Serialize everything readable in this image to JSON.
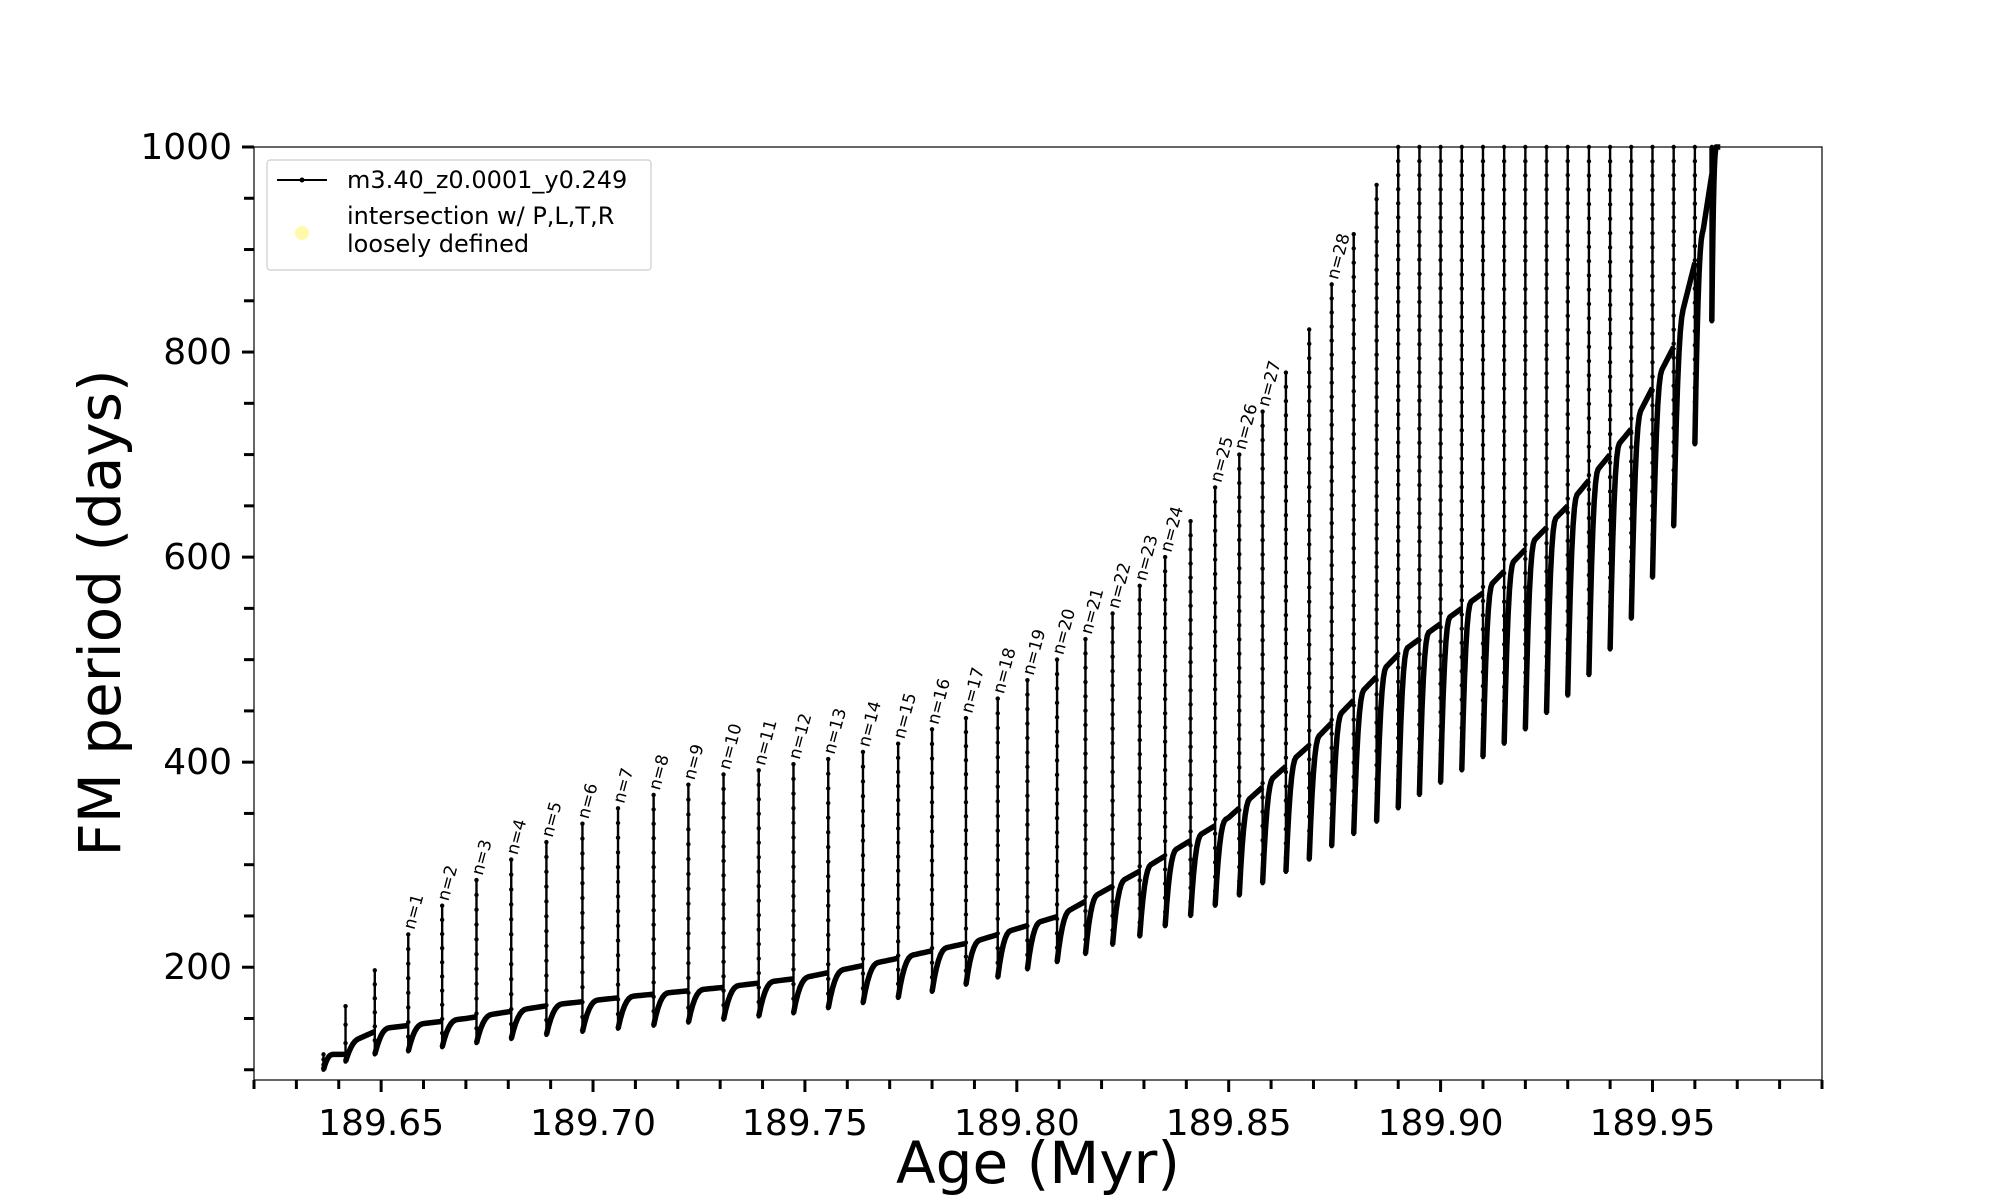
{
  "chart_data": {
    "type": "line",
    "xlabel": "Age (Myr)",
    "ylabel": "FM period (days)",
    "xlim": [
      189.62,
      189.99
    ],
    "ylim": [
      90,
      1000
    ],
    "x_ticks": [
      189.65,
      189.7,
      189.75,
      189.8,
      189.85,
      189.9,
      189.95
    ],
    "x_tick_labels": [
      "189.65",
      "189.70",
      "189.75",
      "189.80",
      "189.85",
      "189.90",
      "189.95"
    ],
    "y_ticks": [
      200,
      400,
      600,
      800,
      1000
    ],
    "y_tick_labels": [
      "200",
      "400",
      "600",
      "800",
      "1000"
    ],
    "grid": false,
    "legend": {
      "placement": "top-left",
      "entries": [
        {
          "label": "m3.40_z0.0001_y0.249",
          "style": "line-with-dots",
          "color": "#000000"
        },
        {
          "label": "intersection w/ P,L,T,R\nloosely defined",
          "style": "marker",
          "color": "#fffaa0"
        }
      ]
    },
    "series": [
      {
        "name": "m3.40_z0.0001_y0.249",
        "color": "#000000",
        "pulses": [
          {
            "x": 189.6364,
            "base": 100,
            "peak": 115
          },
          {
            "x": 189.6416,
            "base": 108,
            "peak": 162
          },
          {
            "x": 189.6485,
            "base": 115,
            "peak": 197
          },
          {
            "x": 189.6564,
            "base": 118,
            "peak": 232,
            "annotation": "n=1"
          },
          {
            "x": 189.6644,
            "base": 122,
            "peak": 260,
            "annotation": "n=2"
          },
          {
            "x": 189.6725,
            "base": 126,
            "peak": 285,
            "annotation": "n=3"
          },
          {
            "x": 189.6807,
            "base": 130,
            "peak": 305,
            "annotation": "n=4"
          },
          {
            "x": 189.689,
            "base": 134,
            "peak": 322,
            "annotation": "n=5"
          },
          {
            "x": 189.6975,
            "base": 137,
            "peak": 340,
            "annotation": "n=6"
          },
          {
            "x": 189.7059,
            "base": 140,
            "peak": 355,
            "annotation": "n=7"
          },
          {
            "x": 189.7143,
            "base": 143,
            "peak": 368,
            "annotation": "n=8"
          },
          {
            "x": 189.7225,
            "base": 146,
            "peak": 378,
            "annotation": "n=9"
          },
          {
            "x": 189.7308,
            "base": 149,
            "peak": 388,
            "annotation": "n=10"
          },
          {
            "x": 189.7391,
            "base": 152,
            "peak": 392,
            "annotation": "n=11"
          },
          {
            "x": 189.7473,
            "base": 155,
            "peak": 398,
            "annotation": "n=12"
          },
          {
            "x": 189.7555,
            "base": 160,
            "peak": 403,
            "annotation": "n=13"
          },
          {
            "x": 189.7637,
            "base": 165,
            "peak": 410,
            "annotation": "n=14"
          },
          {
            "x": 189.772,
            "base": 170,
            "peak": 418,
            "annotation": "n=15"
          },
          {
            "x": 189.78,
            "base": 176,
            "peak": 432,
            "annotation": "n=16"
          },
          {
            "x": 189.788,
            "base": 183,
            "peak": 443,
            "annotation": "n=17"
          },
          {
            "x": 189.7955,
            "base": 190,
            "peak": 462,
            "annotation": "n=18"
          },
          {
            "x": 189.8025,
            "base": 198,
            "peak": 480,
            "annotation": "n=19"
          },
          {
            "x": 189.8095,
            "base": 205,
            "peak": 500,
            "annotation": "n=20"
          },
          {
            "x": 189.8162,
            "base": 213,
            "peak": 520,
            "annotation": "n=21"
          },
          {
            "x": 189.8226,
            "base": 222,
            "peak": 545,
            "annotation": "n=22"
          },
          {
            "x": 189.829,
            "base": 230,
            "peak": 572,
            "annotation": "n=23"
          },
          {
            "x": 189.835,
            "base": 240,
            "peak": 600,
            "annotation": "n=24"
          },
          {
            "x": 189.841,
            "base": 250,
            "peak": 635
          },
          {
            "x": 189.8468,
            "base": 260,
            "peak": 668,
            "annotation": "n=25"
          },
          {
            "x": 189.8525,
            "base": 270,
            "peak": 700,
            "annotation": "n=26"
          },
          {
            "x": 189.858,
            "base": 282,
            "peak": 742,
            "annotation": "n=27"
          },
          {
            "x": 189.8635,
            "base": 293,
            "peak": 780
          },
          {
            "x": 189.869,
            "base": 305,
            "peak": 822
          },
          {
            "x": 189.8743,
            "base": 318,
            "peak": 866,
            "annotation": "n=28"
          },
          {
            "x": 189.8795,
            "base": 330,
            "peak": 915
          },
          {
            "x": 189.8849,
            "base": 342,
            "peak": 963
          },
          {
            "x": 189.89,
            "base": 355,
            "peak": 1000
          },
          {
            "x": 189.895,
            "base": 368,
            "peak": 1000
          },
          {
            "x": 189.9,
            "base": 380,
            "peak": 1000
          },
          {
            "x": 189.905,
            "base": 392,
            "peak": 1000
          },
          {
            "x": 189.91,
            "base": 405,
            "peak": 1000
          },
          {
            "x": 189.915,
            "base": 418,
            "peak": 1000
          },
          {
            "x": 189.92,
            "base": 432,
            "peak": 1000
          },
          {
            "x": 189.925,
            "base": 448,
            "peak": 1000
          },
          {
            "x": 189.93,
            "base": 465,
            "peak": 1000
          },
          {
            "x": 189.935,
            "base": 485,
            "peak": 1000
          },
          {
            "x": 189.94,
            "base": 510,
            "peak": 1000
          },
          {
            "x": 189.945,
            "base": 540,
            "peak": 1000
          },
          {
            "x": 189.95,
            "base": 580,
            "peak": 1000
          },
          {
            "x": 189.955,
            "base": 630,
            "peak": 1000
          },
          {
            "x": 189.96,
            "base": 710,
            "peak": 1000
          },
          {
            "x": 189.964,
            "base": 830,
            "peak": 1000
          }
        ],
        "envelope": {
          "x": [
            189.6364,
            189.65,
            189.67,
            189.69,
            189.71,
            189.73,
            189.75,
            189.77,
            189.79,
            189.81,
            189.83,
            189.85,
            189.87,
            189.89,
            189.91,
            189.93,
            189.945,
            189.955,
            189.962,
            189.965
          ],
          "y": [
            115,
            140,
            150,
            163,
            172,
            180,
            190,
            207,
            225,
            250,
            296,
            346,
            420,
            505,
            565,
            650,
            725,
            805,
            920,
            1000
          ]
        }
      }
    ]
  }
}
